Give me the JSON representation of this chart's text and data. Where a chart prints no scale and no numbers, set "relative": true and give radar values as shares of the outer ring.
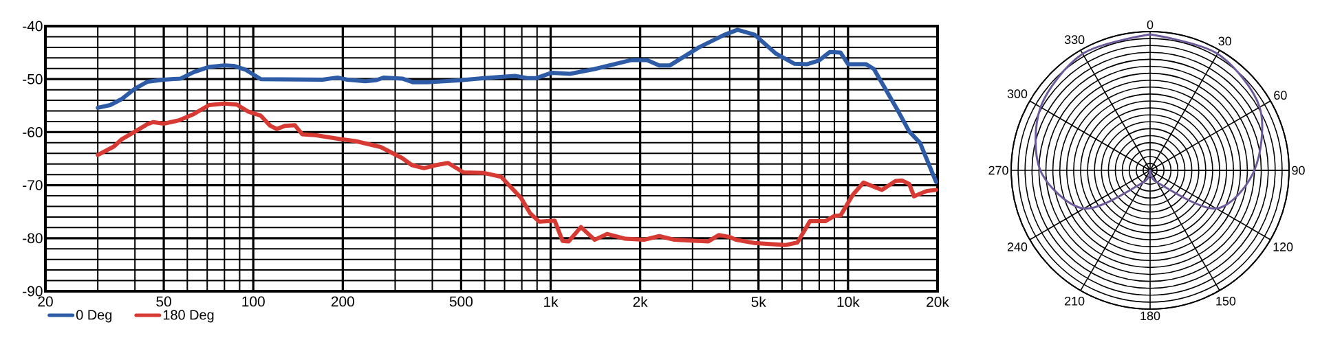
{
  "chart_data": [
    {
      "type": "line",
      "log": "x",
      "grid": true,
      "marker": "none",
      "legend": "bottom left",
      "xlim": [
        20,
        20000
      ],
      "ylim": [
        -90,
        -40
      ],
      "xticks": [
        20,
        50,
        100,
        200,
        500,
        {
          "value": 1000,
          "label": "1k"
        },
        {
          "value": 2000,
          "label": "2k"
        },
        {
          "value": 5000,
          "label": "5k"
        },
        {
          "value": 10000,
          "label": "10k"
        },
        {
          "value": 20000,
          "label": "20k"
        }
      ],
      "yticks": [
        -90,
        -80,
        -70,
        -60,
        -50,
        -40
      ],
      "series": [
        {
          "name": "0 Deg",
          "color": "#2d5ba6",
          "x": [
            30,
            33,
            36,
            40,
            44,
            50,
            57,
            63,
            71,
            80,
            86,
            94,
            106,
            171,
            192,
            207,
            238,
            259,
            275,
            317,
            345,
            384,
            499,
            597,
            758,
            834,
            896,
            1009,
            1162,
            1406,
            1870,
            2108,
            2318,
            2519,
            3155,
            3819,
            4249,
            4842,
            5728,
            6607,
            7266,
            7984,
            8673,
            9439,
            10010,
            11510,
            12220,
            14800,
            16070,
            17460,
            19780
          ],
          "values": [
            -55.4,
            -54.9,
            -53.8,
            -51.8,
            -50.5,
            -50.1,
            -49.9,
            -48.7,
            -47.7,
            -47.4,
            -47.5,
            -48.2,
            -50,
            -50.1,
            -49.7,
            -50.1,
            -50.4,
            -50.2,
            -49.7,
            -49.9,
            -50.6,
            -50.6,
            -50.2,
            -49.8,
            -49.4,
            -49.8,
            -49.8,
            -48.8,
            -49,
            -48.1,
            -46.4,
            -46.4,
            -47.4,
            -47.4,
            -44,
            -41.7,
            -40.7,
            -41.6,
            -45.2,
            -47.1,
            -47.2,
            -46.5,
            -44.9,
            -45,
            -47.2,
            -47.2,
            -48.1,
            -56.2,
            -59.9,
            -62,
            -69.4
          ]
        },
        {
          "name": "180 Deg",
          "color": "#d63a33",
          "x": [
            30,
            34,
            36,
            40,
            44,
            46,
            50,
            56,
            63,
            71,
            80,
            88,
            96,
            106,
            114,
            120,
            128,
            138,
            146,
            163,
            196,
            221,
            268,
            317,
            341,
            375,
            413,
            452,
            509,
            597,
            681,
            795,
            853,
            916,
            1032,
            1096,
            1149,
            1264,
            1406,
            1548,
            1783,
            2059,
            2318,
            2610,
            3390,
            3682,
            4006,
            4200,
            4842,
            6150,
            6761,
            7444,
            8380,
            8995,
            9439,
            10380,
            11270,
            13000,
            14450,
            15170,
            16070,
            16670,
            18420,
            19780
          ],
          "values": [
            -64.3,
            -62.7,
            -61.4,
            -59.9,
            -58.5,
            -58.1,
            -58.4,
            -57.8,
            -56.6,
            -54.9,
            -54.6,
            -54.8,
            -56.1,
            -56.9,
            -58.8,
            -59.4,
            -58.8,
            -58.7,
            -60.4,
            -60.6,
            -61.3,
            -61.7,
            -62.8,
            -64.9,
            -66.2,
            -66.8,
            -66.2,
            -65.8,
            -67.6,
            -67.7,
            -68.4,
            -72.4,
            -75.3,
            -76.9,
            -76.7,
            -80.5,
            -80.6,
            -77.9,
            -80.3,
            -79.2,
            -80.1,
            -80.3,
            -79.6,
            -80.3,
            -80.6,
            -79.4,
            -79.8,
            -80.3,
            -80.9,
            -81.3,
            -80.8,
            -76.8,
            -76.8,
            -75.8,
            -75.7,
            -71.8,
            -69.5,
            -70.9,
            -69.2,
            -69.1,
            -69.8,
            -72.1,
            -71.1,
            -70.9
          ]
        }
      ]
    },
    {
      "type": "radar",
      "relative": true,
      "grid": true,
      "categories": [
        "0",
        "30",
        "60",
        "90",
        "120",
        "150",
        "180",
        "210",
        "240",
        "270",
        "300",
        "330"
      ],
      "series": [
        {
          "color": "#6d5a9a",
          "values": [
            0.98,
            0.97,
            0.91,
            0.75,
            0.55,
            0.1,
            0,
            0.1,
            0.55,
            0.79,
            0.91,
            0.97
          ]
        }
      ]
    }
  ]
}
